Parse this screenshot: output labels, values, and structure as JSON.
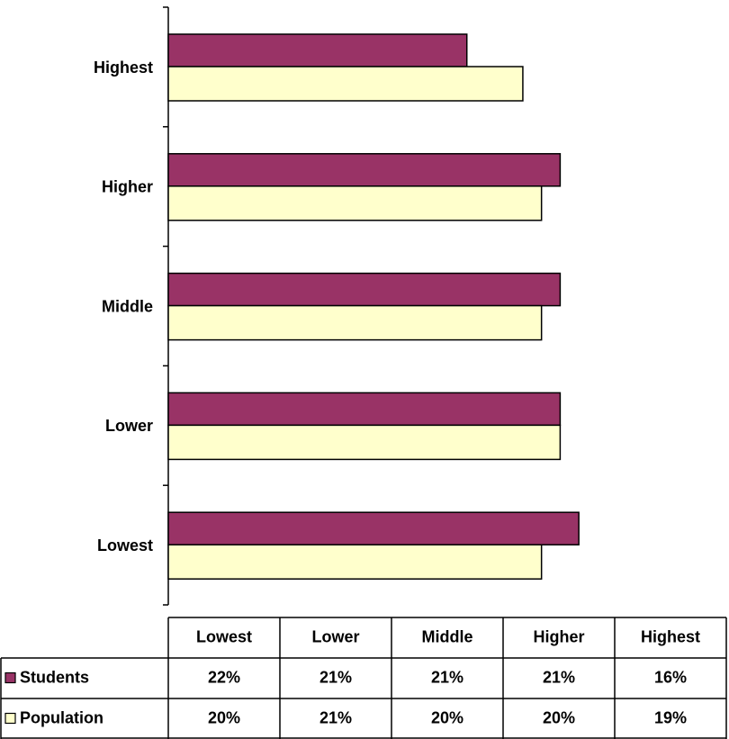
{
  "chart_data": {
    "type": "hbar",
    "categories": [
      "Lowest",
      "Lower",
      "Middle",
      "Higher",
      "Highest"
    ],
    "xlim": [
      0,
      30
    ],
    "series": [
      {
        "name": "Students",
        "color": "#993366",
        "values": [
          22,
          21,
          21,
          21,
          16
        ],
        "value_labels": [
          "22%",
          "21%",
          "21%",
          "21%",
          "16%"
        ]
      },
      {
        "name": "Population",
        "color": "#ffffcc",
        "values": [
          20,
          21,
          20,
          20,
          19
        ],
        "value_labels": [
          "20%",
          "21%",
          "20%",
          "20%",
          "19%"
        ]
      }
    ]
  }
}
